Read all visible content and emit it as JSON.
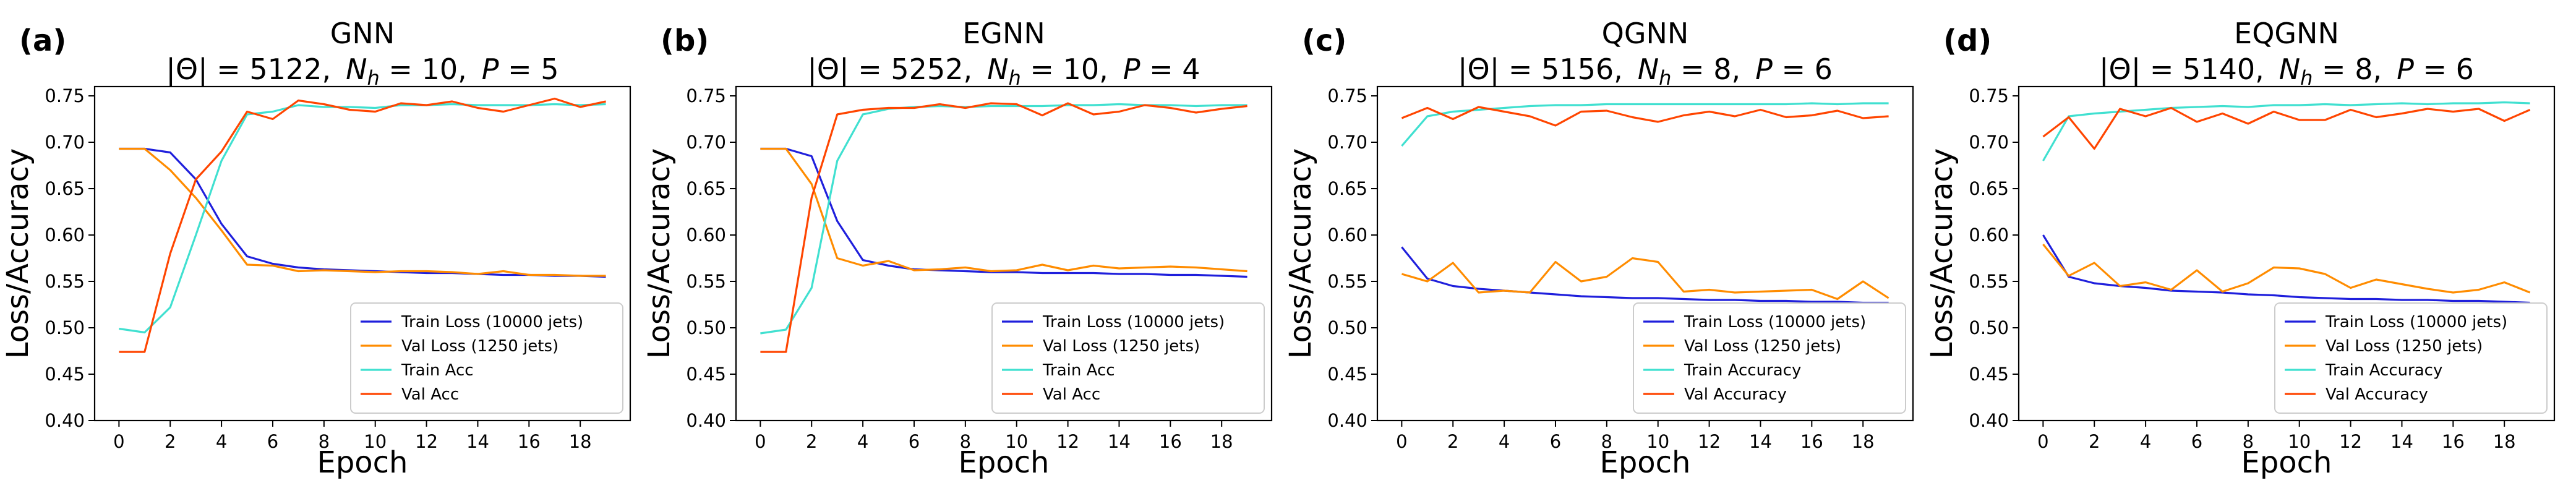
{
  "figure": {
    "xlabel": "Epoch",
    "ylabel": "Loss/Accuracy",
    "xlim": [
      -0.95,
      19.95
    ],
    "ylim": [
      0.4,
      0.76
    ],
    "xticks": [
      0,
      2,
      4,
      6,
      8,
      10,
      12,
      14,
      16,
      18
    ],
    "yticks": [
      0.4,
      0.45,
      0.5,
      0.55,
      0.6,
      0.65,
      0.7,
      0.75
    ],
    "colors": {
      "train_loss": "#1f1fdc",
      "val_loss": "#ff8c00",
      "train_acc": "#40e0d0",
      "val_acc": "#ff4500"
    }
  },
  "chart_data": [
    {
      "type": "line",
      "panel_label": "(a)",
      "title": "GNN",
      "subtitle_parts": [
        "|Θ| = 5122,",
        "N",
        "h",
        " = 10,",
        "P",
        " = 5"
      ],
      "xlabel": "Epoch",
      "ylabel": "Loss/Accuracy",
      "xlim": [
        -0.95,
        19.95
      ],
      "ylim": [
        0.4,
        0.76
      ],
      "x": [
        0,
        1,
        2,
        3,
        4,
        5,
        6,
        7,
        8,
        9,
        10,
        11,
        12,
        13,
        14,
        15,
        16,
        17,
        18,
        19
      ],
      "series": [
        {
          "key": "train_loss",
          "name": "Train Loss (10000 jets)",
          "values": [
            0.693,
            0.693,
            0.689,
            0.66,
            0.612,
            0.577,
            0.569,
            0.565,
            0.563,
            0.562,
            0.561,
            0.56,
            0.559,
            0.559,
            0.558,
            0.557,
            0.557,
            0.556,
            0.556,
            0.555
          ]
        },
        {
          "key": "val_loss",
          "name": "Val Loss (1250 jets)",
          "values": [
            0.693,
            0.693,
            0.67,
            0.64,
            0.605,
            0.568,
            0.567,
            0.561,
            0.562,
            0.561,
            0.56,
            0.561,
            0.561,
            0.56,
            0.558,
            0.561,
            0.557,
            0.557,
            0.556,
            0.556
          ]
        },
        {
          "key": "train_acc",
          "name": "Train Acc",
          "values": [
            0.499,
            0.495,
            0.522,
            0.6,
            0.68,
            0.73,
            0.733,
            0.74,
            0.738,
            0.738,
            0.737,
            0.74,
            0.74,
            0.741,
            0.74,
            0.74,
            0.74,
            0.741,
            0.74,
            0.741
          ]
        },
        {
          "key": "val_acc",
          "name": "Val Acc",
          "values": [
            0.474,
            0.474,
            0.58,
            0.66,
            0.69,
            0.733,
            0.725,
            0.745,
            0.741,
            0.735,
            0.733,
            0.742,
            0.74,
            0.744,
            0.737,
            0.733,
            0.74,
            0.747,
            0.738,
            0.744
          ]
        }
      ],
      "legend": "lower-right"
    },
    {
      "type": "line",
      "panel_label": "(b)",
      "title": "EGNN",
      "subtitle_parts": [
        "|Θ| = 5252,",
        "N",
        "h",
        " = 10,",
        "P",
        " = 4"
      ],
      "xlabel": "Epoch",
      "ylabel": "Loss/Accuracy",
      "xlim": [
        -0.95,
        19.95
      ],
      "ylim": [
        0.4,
        0.76
      ],
      "x": [
        0,
        1,
        2,
        3,
        4,
        5,
        6,
        7,
        8,
        9,
        10,
        11,
        12,
        13,
        14,
        15,
        16,
        17,
        18,
        19
      ],
      "series": [
        {
          "key": "train_loss",
          "name": "Train Loss (10000 jets)",
          "values": [
            0.693,
            0.693,
            0.685,
            0.615,
            0.573,
            0.567,
            0.563,
            0.562,
            0.561,
            0.56,
            0.56,
            0.559,
            0.559,
            0.559,
            0.558,
            0.558,
            0.557,
            0.557,
            0.556,
            0.555
          ]
        },
        {
          "key": "val_loss",
          "name": "Val Loss (1250 jets)",
          "values": [
            0.693,
            0.693,
            0.655,
            0.575,
            0.567,
            0.572,
            0.562,
            0.563,
            0.565,
            0.561,
            0.562,
            0.568,
            0.562,
            0.567,
            0.564,
            0.565,
            0.566,
            0.565,
            0.563,
            0.561
          ]
        },
        {
          "key": "train_acc",
          "name": "Train Acc",
          "values": [
            0.494,
            0.498,
            0.543,
            0.68,
            0.73,
            0.736,
            0.738,
            0.739,
            0.738,
            0.739,
            0.739,
            0.739,
            0.74,
            0.74,
            0.741,
            0.74,
            0.74,
            0.739,
            0.74,
            0.74
          ]
        },
        {
          "key": "val_acc",
          "name": "Val Acc",
          "values": [
            0.474,
            0.474,
            0.64,
            0.73,
            0.735,
            0.737,
            0.737,
            0.741,
            0.737,
            0.742,
            0.741,
            0.729,
            0.742,
            0.73,
            0.733,
            0.74,
            0.737,
            0.732,
            0.736,
            0.739
          ]
        }
      ],
      "legend": "lower-right"
    },
    {
      "type": "line",
      "panel_label": "(c)",
      "title": "QGNN",
      "subtitle_parts": [
        "|Θ| = 5156,",
        "N",
        "h",
        " = 8,",
        "P",
        " = 6"
      ],
      "xlabel": "Epoch",
      "ylabel": "Loss/Accuracy",
      "xlim": [
        -0.95,
        19.95
      ],
      "ylim": [
        0.4,
        0.76
      ],
      "x": [
        0,
        1,
        2,
        3,
        4,
        5,
        6,
        7,
        8,
        9,
        10,
        11,
        12,
        13,
        14,
        15,
        16,
        17,
        18,
        19
      ],
      "series": [
        {
          "key": "train_loss",
          "name": "Train Loss (10000 jets)",
          "values": [
            0.587,
            0.553,
            0.545,
            0.542,
            0.54,
            0.538,
            0.536,
            0.534,
            0.533,
            0.532,
            0.532,
            0.531,
            0.53,
            0.53,
            0.529,
            0.529,
            0.528,
            0.528,
            0.527,
            0.527
          ]
        },
        {
          "key": "val_loss",
          "name": "Val Loss (1250 jets)",
          "values": [
            0.558,
            0.55,
            0.57,
            0.538,
            0.54,
            0.538,
            0.571,
            0.55,
            0.555,
            0.575,
            0.571,
            0.539,
            0.541,
            0.538,
            0.539,
            0.54,
            0.541,
            0.531,
            0.55,
            0.532
          ]
        },
        {
          "key": "train_acc",
          "name": "Train Accuracy",
          "values": [
            0.696,
            0.728,
            0.733,
            0.735,
            0.737,
            0.739,
            0.74,
            0.74,
            0.741,
            0.741,
            0.741,
            0.741,
            0.741,
            0.741,
            0.741,
            0.741,
            0.742,
            0.741,
            0.742,
            0.742
          ]
        },
        {
          "key": "val_acc",
          "name": "Val Accuracy",
          "values": [
            0.726,
            0.737,
            0.725,
            0.738,
            0.733,
            0.728,
            0.718,
            0.733,
            0.734,
            0.727,
            0.722,
            0.729,
            0.733,
            0.728,
            0.735,
            0.727,
            0.729,
            0.734,
            0.726,
            0.728
          ]
        }
      ],
      "legend": "lower-right"
    },
    {
      "type": "line",
      "panel_label": "(d)",
      "title": "EQGNN",
      "subtitle_parts": [
        "|Θ| = 5140,",
        "N",
        "h",
        " = 8,",
        "P",
        " = 6"
      ],
      "xlabel": "Epoch",
      "ylabel": "Loss/Accuracy",
      "xlim": [
        -0.95,
        19.95
      ],
      "ylim": [
        0.4,
        0.76
      ],
      "x": [
        0,
        1,
        2,
        3,
        4,
        5,
        6,
        7,
        8,
        9,
        10,
        11,
        12,
        13,
        14,
        15,
        16,
        17,
        18,
        19
      ],
      "series": [
        {
          "key": "train_loss",
          "name": "Train Loss (10000 jets)",
          "values": [
            0.6,
            0.555,
            0.548,
            0.545,
            0.543,
            0.54,
            0.539,
            0.538,
            0.536,
            0.535,
            0.533,
            0.532,
            0.531,
            0.531,
            0.53,
            0.53,
            0.529,
            0.529,
            0.528,
            0.527
          ]
        },
        {
          "key": "val_loss",
          "name": "Val Loss (1250 jets)",
          "values": [
            0.59,
            0.556,
            0.57,
            0.545,
            0.549,
            0.541,
            0.562,
            0.539,
            0.548,
            0.565,
            0.564,
            0.558,
            0.543,
            0.552,
            0.547,
            0.542,
            0.538,
            0.541,
            0.549,
            0.538
          ]
        },
        {
          "key": "train_acc",
          "name": "Train Accuracy",
          "values": [
            0.68,
            0.728,
            0.731,
            0.733,
            0.735,
            0.737,
            0.738,
            0.739,
            0.738,
            0.74,
            0.74,
            0.741,
            0.74,
            0.741,
            0.742,
            0.741,
            0.742,
            0.742,
            0.743,
            0.742
          ]
        },
        {
          "key": "val_acc",
          "name": "Val Accuracy",
          "values": [
            0.706,
            0.727,
            0.693,
            0.736,
            0.728,
            0.737,
            0.722,
            0.731,
            0.72,
            0.733,
            0.724,
            0.724,
            0.735,
            0.727,
            0.731,
            0.736,
            0.733,
            0.736,
            0.723,
            0.735
          ]
        }
      ],
      "legend": "lower-right"
    }
  ]
}
